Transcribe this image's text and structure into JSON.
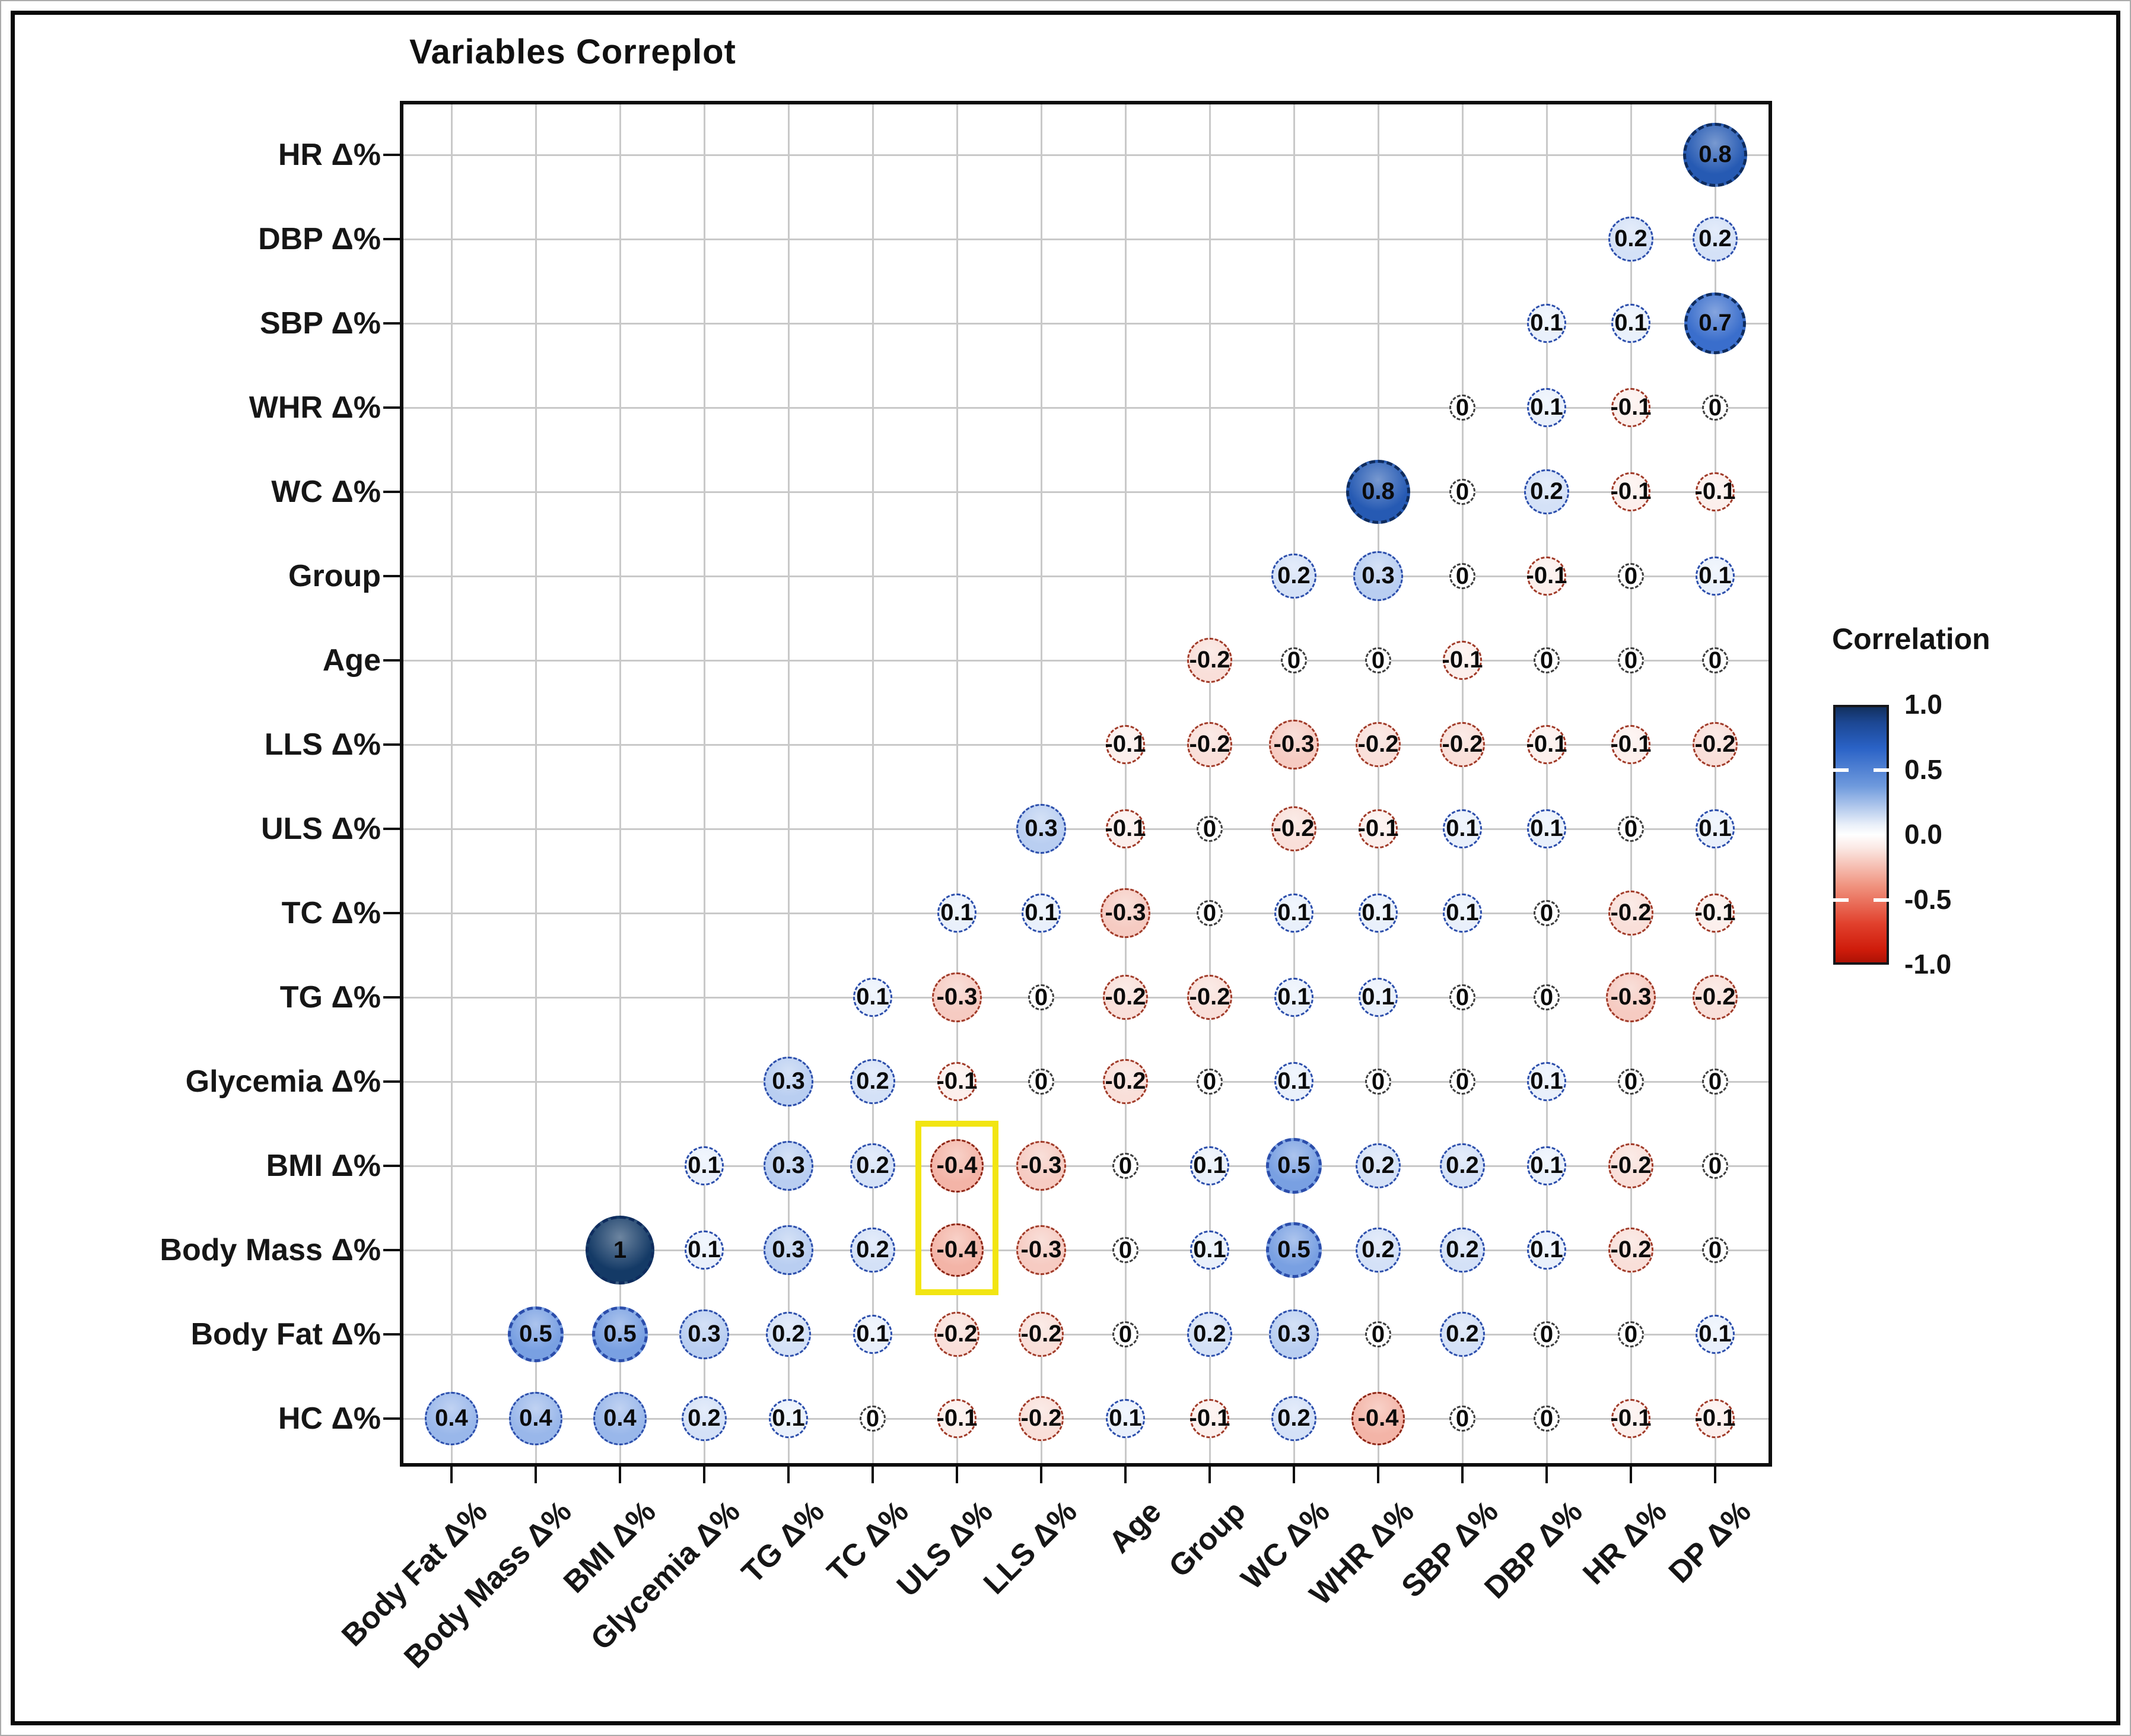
{
  "figure": {
    "title": "Variables Correplot",
    "background": "#ffffff",
    "frame_color": "#000000",
    "grid_color": "#c9c9c9"
  },
  "legend": {
    "title": "Correlation",
    "ticks": [
      "1.0",
      "0.5",
      "0.0",
      "-0.5",
      "-1.0"
    ],
    "top_color": "#12305e",
    "mid_color": "#ffffff",
    "bottom_color": "#ad1205"
  },
  "highlight": {
    "color": "#f2e512",
    "column": "ULS Δ%",
    "rows": [
      "BMI Δ%",
      "Body Mass Δ%"
    ],
    "values": [
      -0.4,
      -0.4
    ]
  },
  "chart_data": {
    "type": "heatmap",
    "subtype": "correlation-bubble-matrix",
    "title": "Variables Correplot",
    "legend_label": "Correlation",
    "value_range": [
      -1,
      1
    ],
    "legend_tick_values": [
      1.0,
      0.5,
      0.0,
      -0.5,
      -1.0
    ],
    "positive_color": "#2a62c6",
    "negative_color": "#c01c08",
    "x_categories": [
      "Body Fat Δ%",
      "Body Mass Δ%",
      "BMI Δ%",
      "Glycemia Δ%",
      "TG Δ%",
      "TC Δ%",
      "ULS Δ%",
      "LLS Δ%",
      "Age",
      "Group",
      "WC Δ%",
      "WHR Δ%",
      "SBP Δ%",
      "DBP Δ%",
      "HR Δ%",
      "DP Δ%"
    ],
    "y_categories": [
      "HR Δ%",
      "DBP Δ%",
      "SBP Δ%",
      "WHR Δ%",
      "WC Δ%",
      "Group",
      "Age",
      "LLS Δ%",
      "ULS Δ%",
      "TC Δ%",
      "TG Δ%",
      "Glycemia Δ%",
      "BMI Δ%",
      "Body Mass Δ%",
      "Body Fat Δ%",
      "HC Δ%"
    ],
    "matrix": [
      [
        null,
        null,
        null,
        null,
        null,
        null,
        null,
        null,
        null,
        null,
        null,
        null,
        null,
        null,
        null,
        0.8
      ],
      [
        null,
        null,
        null,
        null,
        null,
        null,
        null,
        null,
        null,
        null,
        null,
        null,
        null,
        null,
        0.2,
        0.2
      ],
      [
        null,
        null,
        null,
        null,
        null,
        null,
        null,
        null,
        null,
        null,
        null,
        null,
        null,
        0.1,
        0.1,
        0.7
      ],
      [
        null,
        null,
        null,
        null,
        null,
        null,
        null,
        null,
        null,
        null,
        null,
        null,
        0,
        0.1,
        -0.1,
        0
      ],
      [
        null,
        null,
        null,
        null,
        null,
        null,
        null,
        null,
        null,
        null,
        null,
        0.8,
        0,
        0.2,
        -0.1,
        -0.1
      ],
      [
        null,
        null,
        null,
        null,
        null,
        null,
        null,
        null,
        null,
        null,
        0.2,
        0.3,
        0,
        -0.1,
        0,
        0.1
      ],
      [
        null,
        null,
        null,
        null,
        null,
        null,
        null,
        null,
        null,
        -0.2,
        0,
        0,
        -0.1,
        0,
        0,
        0
      ],
      [
        null,
        null,
        null,
        null,
        null,
        null,
        null,
        null,
        -0.1,
        -0.2,
        -0.3,
        -0.2,
        -0.2,
        -0.1,
        -0.1,
        -0.2
      ],
      [
        null,
        null,
        null,
        null,
        null,
        null,
        null,
        0.3,
        -0.1,
        0,
        -0.2,
        -0.1,
        0.1,
        0.1,
        0,
        0.1
      ],
      [
        null,
        null,
        null,
        null,
        null,
        null,
        0.1,
        0.1,
        -0.3,
        0,
        0.1,
        0.1,
        0.1,
        0,
        -0.2,
        -0.1
      ],
      [
        null,
        null,
        null,
        null,
        null,
        0.1,
        -0.3,
        0,
        -0.2,
        -0.2,
        0.1,
        0.1,
        0,
        0,
        -0.3,
        -0.2
      ],
      [
        null,
        null,
        null,
        null,
        0.3,
        0.2,
        -0.1,
        0,
        -0.2,
        0,
        0.1,
        0,
        0,
        0.1,
        0,
        0
      ],
      [
        null,
        null,
        null,
        0.1,
        0.3,
        0.2,
        -0.4,
        -0.3,
        0,
        0.1,
        0.5,
        0.2,
        0.2,
        0.1,
        -0.2,
        0
      ],
      [
        null,
        null,
        1,
        0.1,
        0.3,
        0.2,
        -0.4,
        -0.3,
        0,
        0.1,
        0.5,
        0.2,
        0.2,
        0.1,
        -0.2,
        0
      ],
      [
        null,
        0.5,
        0.5,
        0.3,
        0.2,
        0.1,
        -0.2,
        -0.2,
        0,
        0.2,
        0.3,
        0,
        0.2,
        0,
        0,
        0.1
      ],
      [
        0.4,
        0.4,
        0.4,
        0.2,
        0.1,
        0,
        -0.1,
        -0.2,
        0.1,
        -0.1,
        0.2,
        -0.4,
        0,
        0,
        -0.1,
        -0.1
      ]
    ],
    "highlighted_cells": [
      {
        "row": "BMI Δ%",
        "col": "ULS Δ%",
        "value": -0.4
      },
      {
        "row": "Body Mass Δ%",
        "col": "ULS Δ%",
        "value": -0.4
      }
    ],
    "grid": true,
    "legend_position": "right"
  }
}
